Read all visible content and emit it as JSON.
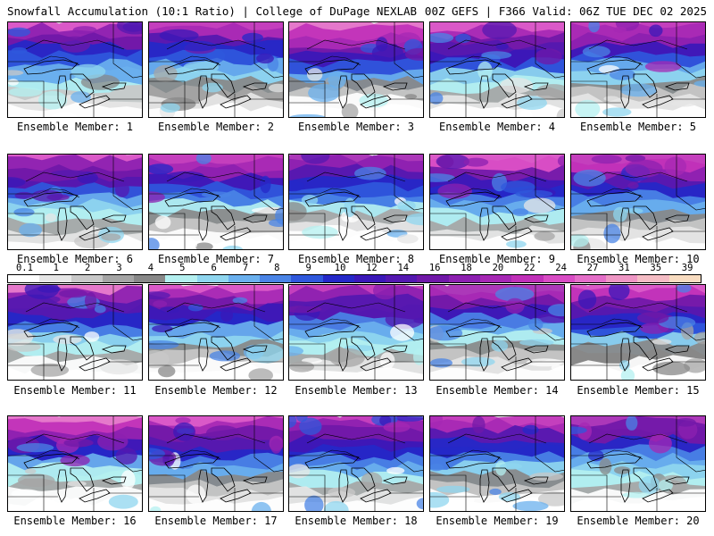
{
  "header": {
    "left_title": "Snowfall Accumulation (10:1 Ratio) | College of DuPage NEXLAB",
    "right_title": "00Z GEFS | F366 Valid: 06Z TUE DEC 02 2025"
  },
  "colorbar": {
    "tick_labels": [
      "0.1",
      "1",
      "2",
      "3",
      "4",
      "5",
      "6",
      "7",
      "8",
      "9",
      "10",
      "12",
      "14",
      "16",
      "18",
      "20",
      "22",
      "24",
      "27",
      "31",
      "35",
      "39"
    ],
    "colors": [
      "#ffffff",
      "#e6e6e6",
      "#c8c8c8",
      "#a5a5a5",
      "#888888",
      "#b4f0f0",
      "#8fd6ef",
      "#6ab0ee",
      "#4a84e6",
      "#2f58dc",
      "#2428c8",
      "#3a18b8",
      "#5418b0",
      "#7018a8",
      "#8c20b0",
      "#a628b4",
      "#c030b8",
      "#d84cc4",
      "#e46ec8",
      "#ee96c4",
      "#f4bcc4",
      "#f8dcc0"
    ]
  },
  "panels": [
    {
      "label": "Ensemble Member: 1"
    },
    {
      "label": "Ensemble Member: 2"
    },
    {
      "label": "Ensemble Member: 3"
    },
    {
      "label": "Ensemble Member: 4"
    },
    {
      "label": "Ensemble Member: 5"
    },
    {
      "label": "Ensemble Member: 6"
    },
    {
      "label": "Ensemble Member: 7"
    },
    {
      "label": "Ensemble Member: 8"
    },
    {
      "label": "Ensemble Member: 9"
    },
    {
      "label": "Ensemble Member: 10"
    },
    {
      "label": "Ensemble Member: 11"
    },
    {
      "label": "Ensemble Member: 12"
    },
    {
      "label": "Ensemble Member: 13"
    },
    {
      "label": "Ensemble Member: 14"
    },
    {
      "label": "Ensemble Member: 15"
    },
    {
      "label": "Ensemble Member: 16"
    },
    {
      "label": "Ensemble Member: 17"
    },
    {
      "label": "Ensemble Member: 18"
    },
    {
      "label": "Ensemble Member: 19"
    },
    {
      "label": "Ensemble Member: 20"
    }
  ]
}
